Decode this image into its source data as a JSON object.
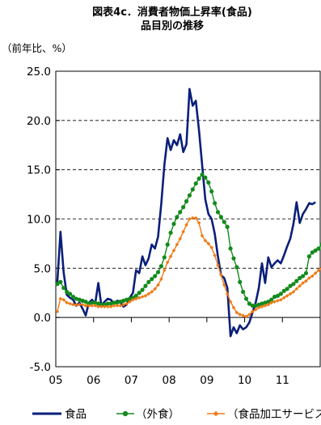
{
  "chart_data": {
    "type": "line",
    "title": "図表4c．消費者物価上昇率(食品)",
    "subtitle": "品目別の推移",
    "unit_label": "（前年比、%）",
    "x_tick_labels": [
      "05",
      "06",
      "07",
      "08",
      "09",
      "10",
      "11"
    ],
    "x_start_year": 2005,
    "ylim": [
      -5.0,
      25.0
    ],
    "y_ticks": [
      "25.0",
      "20.0",
      "15.0",
      "10.0",
      "5.0",
      "0.0",
      "-5.0"
    ],
    "grid": "horizontal-dashed",
    "legend_placement": "bottom",
    "series": [
      {
        "name": "食品",
        "color": "#0a1f7a",
        "marker": "none",
        "values": [
          3.6,
          8.7,
          4.6,
          2.3,
          2.0,
          1.8,
          1.2,
          1.5,
          0.9,
          0.2,
          1.5,
          1.8,
          1.4,
          3.5,
          1.2,
          1.6,
          1.9,
          1.8,
          1.4,
          1.7,
          1.6,
          1.1,
          1.3,
          2.0,
          2.5,
          4.8,
          4.5,
          6.2,
          5.3,
          6.0,
          7.4,
          7.0,
          8.2,
          11.5,
          15.5,
          18.2,
          17.0,
          18.0,
          17.5,
          18.6,
          16.8,
          17.6,
          23.2,
          21.5,
          22.0,
          19.0,
          15.5,
          12.0,
          10.5,
          10.0,
          8.5,
          6.2,
          4.3,
          4.0,
          3.0,
          -1.9,
          -1.0,
          -1.6,
          -0.8,
          -1.2,
          -1.0,
          -0.5,
          0.5,
          1.5,
          3.0,
          5.5,
          3.5,
          6.1,
          5.1,
          5.5,
          5.8,
          5.5,
          6.3,
          7.2,
          8.0,
          9.5,
          11.7,
          9.6,
          10.5,
          11.0,
          11.6,
          11.5,
          11.7
        ],
        "start_month": 1
      },
      {
        "name": "（外食）",
        "color": "#138a1c",
        "marker": "circle",
        "values": [
          3.4,
          3.6,
          3.0,
          2.6,
          2.4,
          2.1,
          1.9,
          1.8,
          1.7,
          1.6,
          1.4,
          1.5,
          1.5,
          1.4,
          1.3,
          1.3,
          1.4,
          1.4,
          1.5,
          1.5,
          1.6,
          1.7,
          1.8,
          1.9,
          2.0,
          2.2,
          2.5,
          2.8,
          3.2,
          3.6,
          3.9,
          4.2,
          4.6,
          5.2,
          6.1,
          7.4,
          8.6,
          9.5,
          10.2,
          10.7,
          11.2,
          11.8,
          12.4,
          13.0,
          13.6,
          14.1,
          14.5,
          14.2,
          13.7,
          12.8,
          11.6,
          10.7,
          10.2,
          9.7,
          9.2,
          7.0,
          6.0,
          5.1,
          3.6,
          2.6,
          1.9,
          1.4,
          1.2,
          1.2,
          1.3,
          1.4,
          1.5,
          1.6,
          1.8,
          2.1,
          2.2,
          2.4,
          2.7,
          2.9,
          3.2,
          3.4,
          3.7,
          4.0,
          4.2,
          4.5,
          6.2,
          6.6,
          6.8,
          7.0,
          7.4,
          7.7,
          8.2
        ],
        "start_month": 1
      },
      {
        "name": "（食品加工サービス）",
        "color": "#f07a15",
        "marker": "diamond",
        "values": [
          0.6,
          1.9,
          1.8,
          1.5,
          1.4,
          1.3,
          1.3,
          1.3,
          1.3,
          1.2,
          1.2,
          1.2,
          1.2,
          1.1,
          1.1,
          1.1,
          1.1,
          1.1,
          1.2,
          1.2,
          1.2,
          1.3,
          1.4,
          1.6,
          1.8,
          1.9,
          2.0,
          2.1,
          2.2,
          2.4,
          2.6,
          2.9,
          3.3,
          3.9,
          4.8,
          5.6,
          6.2,
          6.8,
          7.4,
          8.0,
          8.7,
          9.4,
          10.0,
          10.1,
          10.1,
          9.6,
          8.3,
          7.8,
          7.5,
          7.1,
          6.3,
          5.3,
          4.3,
          3.3,
          2.4,
          1.6,
          1.0,
          0.5,
          0.3,
          0.2,
          0.1,
          0.3,
          0.6,
          0.8,
          1.0,
          1.1,
          1.2,
          1.3,
          1.5,
          1.6,
          1.7,
          1.8,
          2.0,
          2.2,
          2.4,
          2.6,
          2.9,
          3.2,
          3.5,
          3.7,
          4.0,
          4.2,
          4.5,
          4.8,
          5.0,
          5.2,
          5.4
        ],
        "start_month": 1
      }
    ]
  }
}
